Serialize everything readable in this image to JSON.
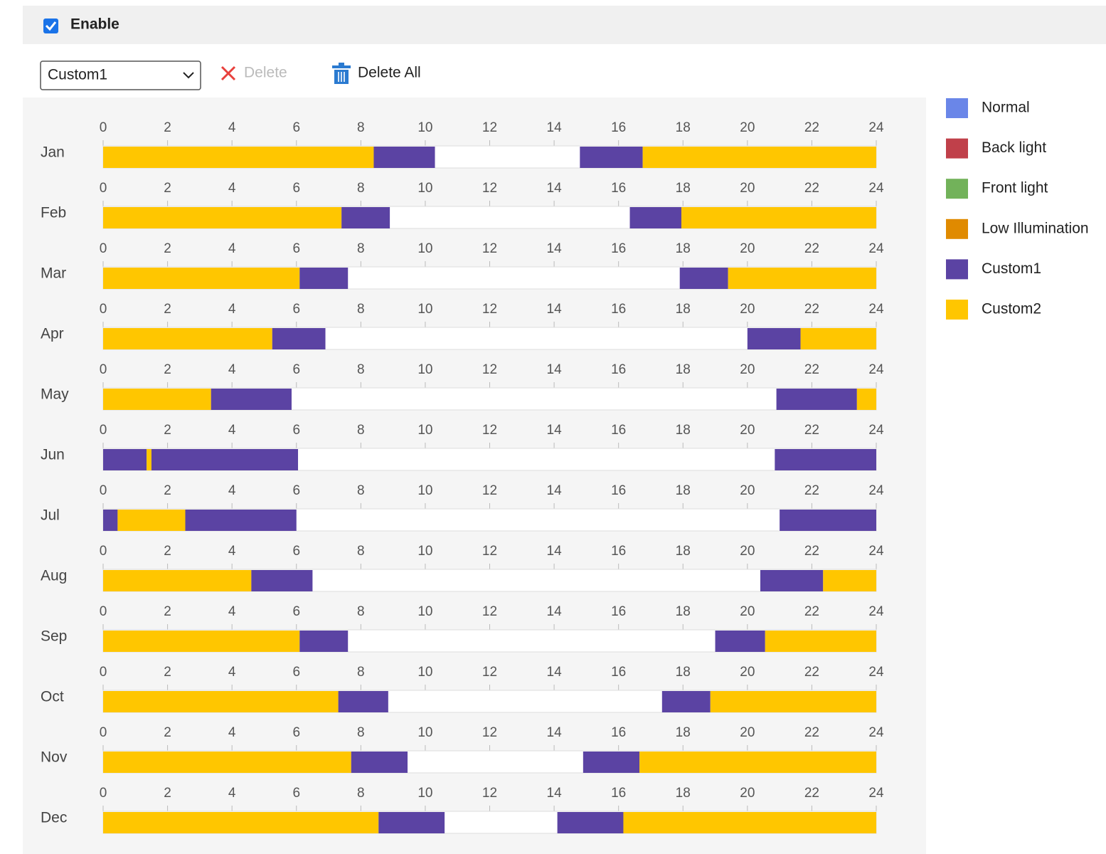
{
  "header": {
    "enable_label": "Enable",
    "enabled": true
  },
  "toolbar": {
    "selected": "Custom1",
    "delete": "Delete",
    "delete_all": "Delete All"
  },
  "legend": [
    {
      "name": "Normal",
      "color": "#6a86e8"
    },
    {
      "name": "Back light",
      "color": "#c0404a"
    },
    {
      "name": "Front light",
      "color": "#72b25a"
    },
    {
      "name": "Low Illumination",
      "color": "#e08a00"
    },
    {
      "name": "Custom1",
      "color": "#5b43a3"
    },
    {
      "name": "Custom2",
      "color": "#ffc600"
    }
  ],
  "schedule": {
    "xlim": [
      0,
      24
    ],
    "xticks": [
      0,
      2,
      4,
      6,
      8,
      10,
      12,
      14,
      16,
      18,
      20,
      22,
      24
    ],
    "rows": [
      {
        "label": "Jan",
        "segments": [
          {
            "start": 0,
            "end": 8.4,
            "color": "#ffc600"
          },
          {
            "start": 8.4,
            "end": 10.3,
            "color": "#5b43a3"
          },
          {
            "start": 14.8,
            "end": 16.75,
            "color": "#5b43a3"
          },
          {
            "start": 16.75,
            "end": 24,
            "color": "#ffc600"
          }
        ]
      },
      {
        "label": "Feb",
        "segments": [
          {
            "start": 0,
            "end": 7.4,
            "color": "#ffc600"
          },
          {
            "start": 7.4,
            "end": 8.9,
            "color": "#5b43a3"
          },
          {
            "start": 16.35,
            "end": 17.95,
            "color": "#5b43a3"
          },
          {
            "start": 17.95,
            "end": 24,
            "color": "#ffc600"
          }
        ]
      },
      {
        "label": "Mar",
        "segments": [
          {
            "start": 0,
            "end": 6.1,
            "color": "#ffc600"
          },
          {
            "start": 6.1,
            "end": 7.6,
            "color": "#5b43a3"
          },
          {
            "start": 17.9,
            "end": 19.4,
            "color": "#5b43a3"
          },
          {
            "start": 19.4,
            "end": 24,
            "color": "#ffc600"
          }
        ]
      },
      {
        "label": "Apr",
        "segments": [
          {
            "start": 0,
            "end": 5.25,
            "color": "#ffc600"
          },
          {
            "start": 5.25,
            "end": 6.9,
            "color": "#5b43a3"
          },
          {
            "start": 20,
            "end": 21.65,
            "color": "#5b43a3"
          },
          {
            "start": 21.65,
            "end": 24,
            "color": "#ffc600"
          }
        ]
      },
      {
        "label": "May",
        "segments": [
          {
            "start": 0,
            "end": 3.35,
            "color": "#ffc600"
          },
          {
            "start": 3.35,
            "end": 5.85,
            "color": "#5b43a3"
          },
          {
            "start": 20.9,
            "end": 23.4,
            "color": "#5b43a3"
          },
          {
            "start": 23.4,
            "end": 24,
            "color": "#ffc600"
          }
        ]
      },
      {
        "label": "Jun",
        "segments": [
          {
            "start": 0,
            "end": 1.35,
            "color": "#5b43a3"
          },
          {
            "start": 1.35,
            "end": 1.5,
            "color": "#ffc600"
          },
          {
            "start": 1.5,
            "end": 6.05,
            "color": "#5b43a3"
          },
          {
            "start": 20.85,
            "end": 24,
            "color": "#5b43a3"
          }
        ]
      },
      {
        "label": "Jul",
        "segments": [
          {
            "start": 0,
            "end": 0.45,
            "color": "#5b43a3"
          },
          {
            "start": 0.45,
            "end": 2.55,
            "color": "#ffc600"
          },
          {
            "start": 2.55,
            "end": 6,
            "color": "#5b43a3"
          },
          {
            "start": 21,
            "end": 24,
            "color": "#5b43a3"
          }
        ]
      },
      {
        "label": "Aug",
        "segments": [
          {
            "start": 0,
            "end": 4.6,
            "color": "#ffc600"
          },
          {
            "start": 4.6,
            "end": 6.5,
            "color": "#5b43a3"
          },
          {
            "start": 20.4,
            "end": 22.35,
            "color": "#5b43a3"
          },
          {
            "start": 22.35,
            "end": 24,
            "color": "#ffc600"
          }
        ]
      },
      {
        "label": "Sep",
        "segments": [
          {
            "start": 0,
            "end": 6.1,
            "color": "#ffc600"
          },
          {
            "start": 6.1,
            "end": 7.6,
            "color": "#5b43a3"
          },
          {
            "start": 19,
            "end": 20.55,
            "color": "#5b43a3"
          },
          {
            "start": 20.55,
            "end": 24,
            "color": "#ffc600"
          }
        ]
      },
      {
        "label": "Oct",
        "segments": [
          {
            "start": 0,
            "end": 7.3,
            "color": "#ffc600"
          },
          {
            "start": 7.3,
            "end": 8.85,
            "color": "#5b43a3"
          },
          {
            "start": 17.35,
            "end": 18.85,
            "color": "#5b43a3"
          },
          {
            "start": 18.85,
            "end": 24,
            "color": "#ffc600"
          }
        ]
      },
      {
        "label": "Nov",
        "segments": [
          {
            "start": 0,
            "end": 7.7,
            "color": "#ffc600"
          },
          {
            "start": 7.7,
            "end": 9.45,
            "color": "#5b43a3"
          },
          {
            "start": 14.9,
            "end": 16.65,
            "color": "#5b43a3"
          },
          {
            "start": 16.65,
            "end": 24,
            "color": "#ffc600"
          }
        ]
      },
      {
        "label": "Dec",
        "segments": [
          {
            "start": 0,
            "end": 8.55,
            "color": "#ffc600"
          },
          {
            "start": 8.55,
            "end": 10.6,
            "color": "#5b43a3"
          },
          {
            "start": 14.1,
            "end": 16.15,
            "color": "#5b43a3"
          },
          {
            "start": 16.15,
            "end": 24,
            "color": "#ffc600"
          }
        ]
      }
    ]
  }
}
